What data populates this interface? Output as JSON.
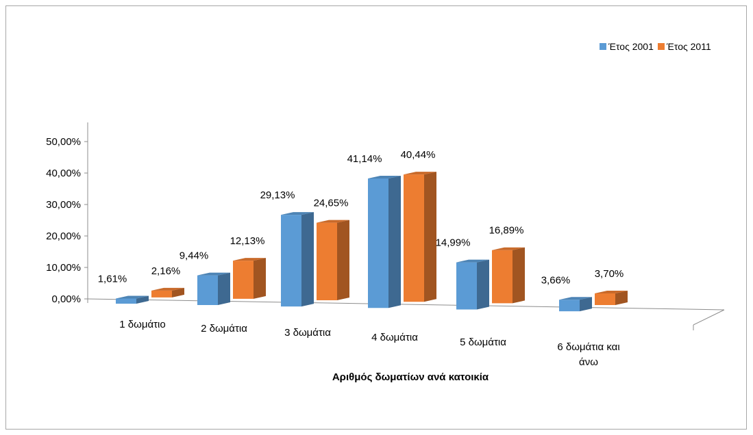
{
  "chart_data": {
    "type": "bar",
    "title": "",
    "xlabel": "Αριθμός δωματίων ανά κατοικία",
    "ylabel": "",
    "categories": [
      [
        "1 δωμάτιο"
      ],
      [
        "2 δωμάτια"
      ],
      [
        "3 δωμάτια"
      ],
      [
        "4 δωμάτια"
      ],
      [
        "5 δωμάτια"
      ],
      [
        "6 δωμάτια και",
        "άνω"
      ]
    ],
    "series": [
      {
        "name": "Έτος 2001",
        "color": "#5b9bd5",
        "values": [
          1.61,
          9.44,
          29.13,
          41.14,
          14.99,
          3.66
        ],
        "labels": [
          "1,61%",
          "9,44%",
          "29,13%",
          "41,14%",
          "14,99%",
          "3,66%"
        ]
      },
      {
        "name": "Έτος 2011",
        "color": "#ed7d31",
        "values": [
          2.16,
          12.13,
          24.65,
          40.44,
          16.89,
          3.7
        ],
        "labels": [
          "2,16%",
          "12,13%",
          "24,65%",
          "40,44%",
          "16,89%",
          "3,70%"
        ]
      }
    ],
    "ylim": [
      0,
      50
    ],
    "yticks": [
      0,
      10,
      20,
      30,
      40,
      50
    ],
    "ytick_labels": [
      "0,00%",
      "10,00%",
      "20,00%",
      "30,00%",
      "40,00%",
      "50,00%"
    ],
    "gridlines": false,
    "legend_position": "top-right",
    "style": "3d-column"
  }
}
